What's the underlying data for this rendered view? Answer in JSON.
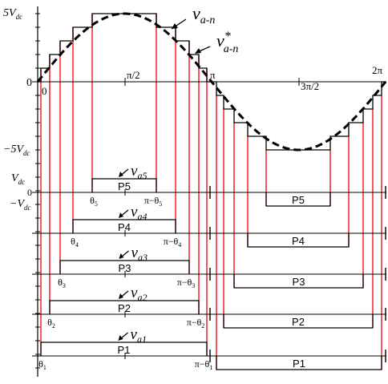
{
  "axis_labels": {
    "y_top": "5V",
    "y_top_sub": "dc",
    "y_bottom": "−5V",
    "y_bottom_sub": "dc",
    "origin": "0",
    "x_zero": "0",
    "x_pi_half": "π/2",
    "x_pi": "π",
    "x_3pi_half": "3π/2",
    "x_2pi": "2π"
  },
  "wave_labels": {
    "reference": "v",
    "reference_sub": "a-n",
    "staircase": "v",
    "staircase_sup": "*",
    "staircase_sub": "a-n"
  },
  "level_labels": {
    "vdc": "V",
    "vdc_sub": "dc",
    "zero": "0",
    "neg_vdc": "−V",
    "neg_vdc_sub": "dc"
  },
  "pulses": [
    {
      "voltage": "v",
      "voltage_sub": "a5",
      "pos_label": "P5",
      "neg_label": "P5",
      "theta": "θ",
      "theta_sub": "5",
      "pi_minus": "π−θ",
      "pi_minus_sub": "5"
    },
    {
      "voltage": "v",
      "voltage_sub": "a4",
      "pos_label": "P4",
      "neg_label": "P4",
      "theta": "θ",
      "theta_sub": "4",
      "pi_minus": "π−θ",
      "pi_minus_sub": "4"
    },
    {
      "voltage": "v",
      "voltage_sub": "a3",
      "pos_label": "P3",
      "neg_label": "P3",
      "theta": "θ",
      "theta_sub": "3",
      "pi_minus": "π−θ",
      "pi_minus_sub": "3"
    },
    {
      "voltage": "v",
      "voltage_sub": "a2",
      "pos_label": "P2",
      "neg_label": "P2",
      "theta": "θ",
      "theta_sub": "2",
      "pi_minus": "π−θ",
      "pi_minus_sub": "2"
    },
    {
      "voltage": "v",
      "voltage_sub": "a1",
      "pos_label": "P1",
      "neg_label": "P1",
      "theta": "θ",
      "theta_sub": "1",
      "pi_minus": "π−θ",
      "pi_minus_sub": "1"
    }
  ],
  "colors": {
    "switching_lines": "#e8141b",
    "ink": "#000000"
  }
}
